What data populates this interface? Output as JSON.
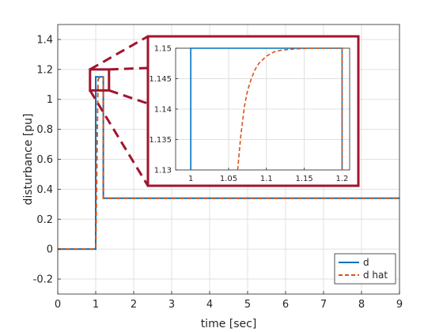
{
  "chart_data": {
    "type": "line",
    "xlabel": "time [sec]",
    "ylabel": "disturbance [pu]",
    "xlim": [
      0,
      9
    ],
    "ylim": [
      -0.3,
      1.5
    ],
    "xticks": [
      0,
      1,
      2,
      3,
      4,
      5,
      6,
      7,
      8,
      9
    ],
    "xtick_labels": [
      "0",
      "1",
      "2",
      "3",
      "4",
      "5",
      "6",
      "7",
      "8",
      "9"
    ],
    "yticks": [
      -0.2,
      0,
      0.2,
      0.4,
      0.6,
      0.8,
      1,
      1.2,
      1.4
    ],
    "ytick_labels": [
      "-0.2",
      "0",
      "0.2",
      "0.4",
      "0.6",
      "0.8",
      "1",
      "1.2",
      "1.4"
    ],
    "grid": true,
    "legend_position": "bottom-right",
    "colors": {
      "d": "#0072BD",
      "d_hat": "#D95319",
      "zoom_box": "#A2142F",
      "grid": "#E0E0E0"
    },
    "series": [
      {
        "name": "d",
        "style": "solid",
        "x": [
          0,
          1.0,
          1.0,
          1.2,
          1.2,
          9
        ],
        "y": [
          0,
          0,
          1.15,
          1.15,
          0.34,
          0.34
        ]
      },
      {
        "name": "d hat",
        "style": "dashed",
        "x": [
          0,
          1.0,
          1.06,
          1.07,
          1.08,
          1.09,
          1.1,
          1.12,
          1.14,
          1.16,
          1.2,
          1.2,
          9
        ],
        "y": [
          0,
          0,
          1.13,
          1.135,
          1.14,
          1.144,
          1.147,
          1.149,
          1.1498,
          1.15,
          1.15,
          0.34,
          0.34
        ]
      }
    ],
    "inset": {
      "source_region": {
        "xlim": [
          0.85,
          1.35
        ],
        "ylim": [
          1.06,
          1.2
        ]
      },
      "xlim": [
        0.98,
        1.21
      ],
      "ylim": [
        1.13,
        1.15
      ],
      "xticks": [
        1,
        1.05,
        1.1,
        1.15,
        1.2
      ],
      "xtick_labels": [
        "1",
        "1.05",
        "1.1",
        "1.15",
        "1.2"
      ],
      "yticks": [
        1.13,
        1.135,
        1.14,
        1.145,
        1.15
      ],
      "ytick_labels": [
        "1.13",
        "1.135",
        "1.14",
        "1.145",
        "1.15"
      ],
      "series": [
        {
          "name": "d",
          "x": [
            1.0,
            1.0,
            1.2,
            1.2
          ],
          "y": [
            1.13,
            1.15,
            1.15,
            1.13
          ]
        },
        {
          "name": "d hat",
          "x": [
            1.062,
            1.066,
            1.068,
            1.071,
            1.075,
            1.08,
            1.085,
            1.09,
            1.1,
            1.11,
            1.12,
            1.14,
            1.16,
            1.18,
            1.2,
            1.2
          ],
          "y": [
            1.13,
            1.1355,
            1.1375,
            1.1405,
            1.143,
            1.145,
            1.1465,
            1.1475,
            1.1487,
            1.1494,
            1.1497,
            1.1499,
            1.15,
            1.15,
            1.15,
            1.13
          ]
        }
      ]
    }
  }
}
